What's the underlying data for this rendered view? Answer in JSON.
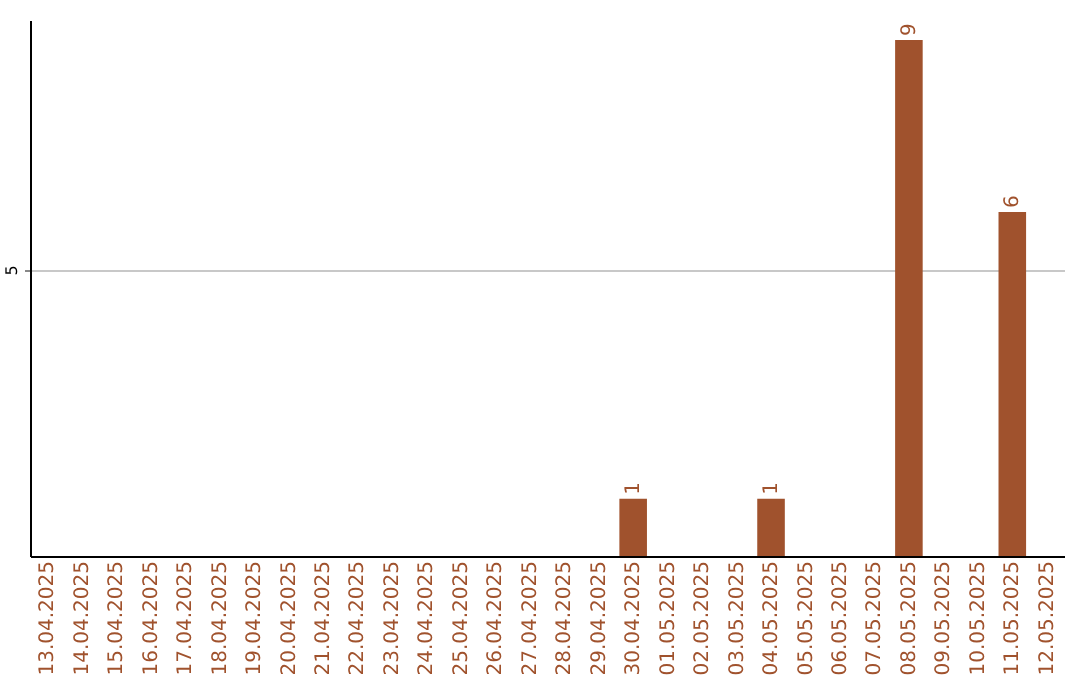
{
  "chart_data": {
    "type": "bar",
    "categories": [
      "13.04.2025",
      "14.04.2025",
      "15.04.2025",
      "16.04.2025",
      "17.04.2025",
      "18.04.2025",
      "19.04.2025",
      "20.04.2025",
      "21.04.2025",
      "22.04.2025",
      "23.04.2025",
      "24.04.2025",
      "25.04.2025",
      "26.04.2025",
      "27.04.2025",
      "28.04.2025",
      "29.04.2025",
      "30.04.2025",
      "01.05.2025",
      "02.05.2025",
      "03.05.2025",
      "04.05.2025",
      "05.05.2025",
      "06.05.2025",
      "07.05.2025",
      "08.05.2025",
      "09.05.2025",
      "10.05.2025",
      "11.05.2025",
      "12.05.2025"
    ],
    "values": [
      null,
      null,
      null,
      null,
      null,
      null,
      null,
      null,
      null,
      null,
      null,
      null,
      null,
      null,
      null,
      null,
      null,
      1,
      null,
      null,
      null,
      1,
      null,
      null,
      null,
      9,
      null,
      null,
      6,
      null
    ],
    "data_labels": true,
    "color": "#a0522d",
    "ylim": [
      0,
      9.35
    ],
    "yticks": [
      5
    ],
    "grid": "y"
  }
}
